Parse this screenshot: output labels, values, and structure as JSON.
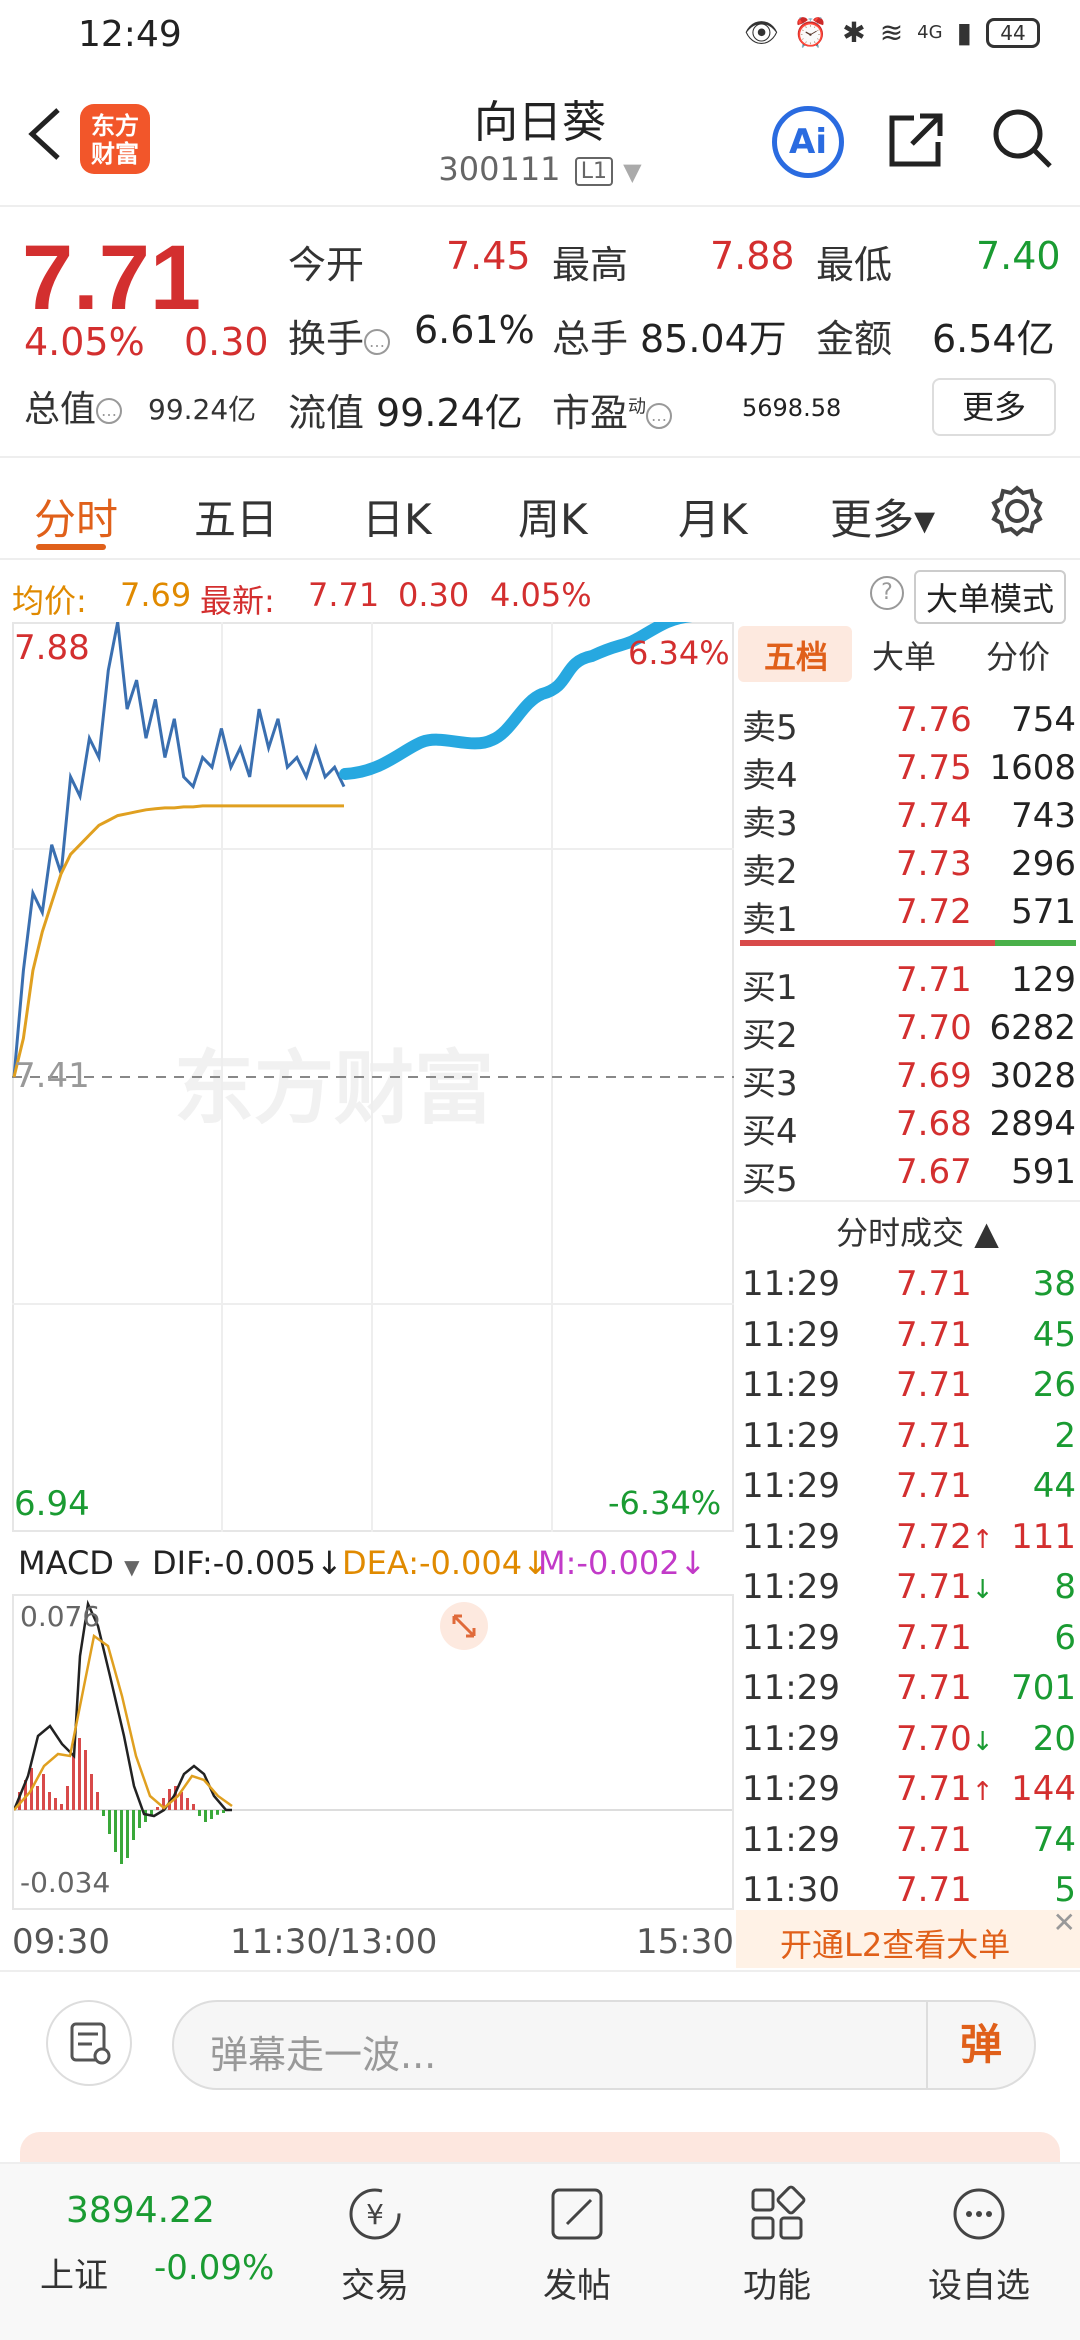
{
  "status_bar": {
    "time": "12:49",
    "battery": "44",
    "network": "4G"
  },
  "header": {
    "logo_text": "东方财富",
    "stock_name": "向日葵",
    "stock_code": "300111",
    "level": "L1"
  },
  "quote": {
    "price": "7.71",
    "change_pct": "4.05%",
    "change_amt": "0.30",
    "open_label": "今开",
    "open": "7.45",
    "high_label": "最高",
    "high": "7.88",
    "low_label": "最低",
    "low": "7.40",
    "turnover_label": "换手",
    "turnover": "6.61%",
    "volume_label": "总手",
    "volume": "85.04万",
    "amount_label": "金额",
    "amount": "6.54亿",
    "mktcap_label": "总值",
    "mktcap": "99.24亿",
    "float_label": "流值",
    "float": "99.24亿",
    "pe_label": "市盈",
    "pe_sup": "动",
    "pe": "5698.58",
    "more_label": "更多"
  },
  "tabs": [
    {
      "label": "分时"
    },
    {
      "label": "五日"
    },
    {
      "label": "日K"
    },
    {
      "label": "周K"
    },
    {
      "label": "月K"
    },
    {
      "label": "更多▾"
    }
  ],
  "legend": {
    "avg_label": "均价:",
    "avg": "7.69",
    "latest_label": "最新:",
    "latest": "7.71",
    "latest_chg": "0.30",
    "latest_pct": "4.05%",
    "big_order_mode": "大单模式"
  },
  "chart": {
    "y_max": "7.88",
    "y_mid": "7.41",
    "y_min": "6.94",
    "pct_max": "6.34%",
    "pct_min": "-6.34%",
    "watermark": "东方财富",
    "colors": {
      "price_line": "#3a6fb0",
      "avg_line": "#e0a020",
      "drawing": "#27a8e0"
    }
  },
  "chart_data": {
    "type": "line",
    "x_range": [
      "09:30",
      "15:30"
    ],
    "ylim": [
      6.94,
      7.88
    ],
    "series": [
      {
        "values": [
          7.41,
          7.52,
          7.6,
          7.58,
          7.65,
          7.62,
          7.72,
          7.7,
          7.76,
          7.74,
          7.83,
          7.88,
          7.79,
          7.82,
          7.76,
          7.8,
          7.74,
          7.78,
          7.72,
          7.71,
          7.74,
          7.73,
          7.77,
          7.73,
          7.75,
          7.72,
          7.79,
          7.75,
          7.78,
          7.73,
          7.74,
          7.72,
          7.75,
          7.72,
          7.73,
          7.71
        ]
      },
      {
        "values": [
          7.41,
          7.45,
          7.52,
          7.56,
          7.59,
          7.62,
          7.64,
          7.65,
          7.66,
          7.67,
          7.675,
          7.68,
          7.682,
          7.684,
          7.686,
          7.687,
          7.688,
          7.688,
          7.689,
          7.689,
          7.69,
          7.69,
          7.69,
          7.69,
          7.69,
          7.69,
          7.69,
          7.69,
          7.69,
          7.69,
          7.69,
          7.69,
          7.69,
          7.69,
          7.69,
          7.69
        ]
      }
    ]
  },
  "order_book": {
    "tabs": [
      "五档",
      "大单",
      "分价"
    ],
    "asks": [
      {
        "label": "卖5",
        "price": "7.76",
        "vol": "754"
      },
      {
        "label": "卖4",
        "price": "7.75",
        "vol": "1608"
      },
      {
        "label": "卖3",
        "price": "7.74",
        "vol": "743"
      },
      {
        "label": "卖2",
        "price": "7.73",
        "vol": "296"
      },
      {
        "label": "卖1",
        "price": "7.72",
        "vol": "571"
      }
    ],
    "bids": [
      {
        "label": "买1",
        "price": "7.71",
        "vol": "129"
      },
      {
        "label": "买2",
        "price": "7.70",
        "vol": "6282"
      },
      {
        "label": "买3",
        "price": "7.69",
        "vol": "3028"
      },
      {
        "label": "买4",
        "price": "7.68",
        "vol": "2894"
      },
      {
        "label": "买5",
        "price": "7.67",
        "vol": "591"
      }
    ],
    "trades_title": "分时成交",
    "trades": [
      {
        "time": "11:29",
        "price": "7.71",
        "arrow": "",
        "vol": "38",
        "side": "g"
      },
      {
        "time": "11:29",
        "price": "7.71",
        "arrow": "",
        "vol": "45",
        "side": "g"
      },
      {
        "time": "11:29",
        "price": "7.71",
        "arrow": "",
        "vol": "26",
        "side": "g"
      },
      {
        "time": "11:29",
        "price": "7.71",
        "arrow": "",
        "vol": "2",
        "side": "g"
      },
      {
        "time": "11:29",
        "price": "7.71",
        "arrow": "",
        "vol": "44",
        "side": "g"
      },
      {
        "time": "11:29",
        "price": "7.72",
        "arrow": "↑",
        "vol": "111",
        "side": "r"
      },
      {
        "time": "11:29",
        "price": "7.71",
        "arrow": "↓",
        "vol": "8",
        "side": "g"
      },
      {
        "time": "11:29",
        "price": "7.71",
        "arrow": "",
        "vol": "6",
        "side": "g"
      },
      {
        "time": "11:29",
        "price": "7.71",
        "arrow": "",
        "vol": "701",
        "side": "g"
      },
      {
        "time": "11:29",
        "price": "7.70",
        "arrow": "↓",
        "vol": "20",
        "side": "g"
      },
      {
        "time": "11:29",
        "price": "7.71",
        "arrow": "↑",
        "vol": "144",
        "side": "r"
      },
      {
        "time": "11:29",
        "price": "7.71",
        "arrow": "",
        "vol": "74",
        "side": "g"
      },
      {
        "time": "11:30",
        "price": "7.71",
        "arrow": "",
        "vol": "5",
        "side": "g"
      }
    ],
    "l2_promo": "开通L2查看大单"
  },
  "macd": {
    "label": "MACD",
    "dif": "DIF:-0.005↓",
    "dea": "DEA:-0.004↓",
    "m": "M:-0.002↓",
    "y_max": "0.076",
    "y_min": "-0.034"
  },
  "time_axis": {
    "start": "09:30",
    "mid": "11:30/13:00",
    "end": "15:30"
  },
  "comment": {
    "placeholder": "弹幕走一波...",
    "danmaku_btn": "弹"
  },
  "bottom_nav": {
    "index_value": "3894.22",
    "index_name": "上证",
    "index_change": "-0.09%",
    "items": [
      {
        "label": "交易"
      },
      {
        "label": "发帖"
      },
      {
        "label": "功能"
      },
      {
        "label": "设自选"
      }
    ]
  }
}
